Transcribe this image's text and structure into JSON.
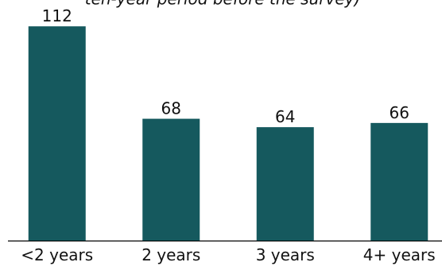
{
  "chart_data": {
    "type": "bar",
    "subtitle": "ten-year period before the survey)",
    "categories": [
      "<2 years",
      "2 years",
      "3 years",
      "4+ years"
    ],
    "values": [
      112,
      68,
      64,
      66
    ],
    "color": "#15595e",
    "ylim": [
      10,
      120
    ]
  }
}
